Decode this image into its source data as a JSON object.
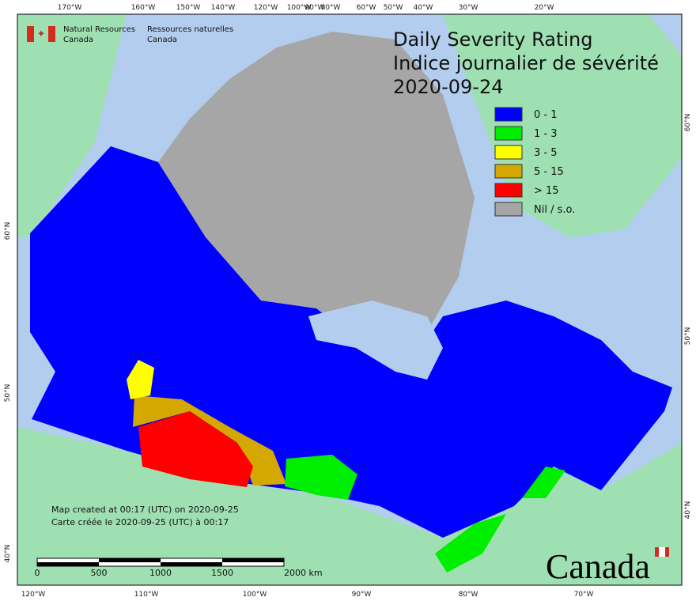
{
  "header": {
    "agency_en_1": "Natural Resources",
    "agency_en_2": "Canada",
    "agency_fr_1": "Ressources naturelles",
    "agency_fr_2": "Canada"
  },
  "title": {
    "line1": "Daily Severity Rating",
    "line2": "Indice journalier de sévérité",
    "date": "2020-09-24"
  },
  "legend": [
    {
      "label": "0 - 1",
      "color": "#0000ff"
    },
    {
      "label": "1 - 3",
      "color": "#00ee00"
    },
    {
      "label": "3 - 5",
      "color": "#ffff00"
    },
    {
      "label": "5 - 15",
      "color": "#d4a800"
    },
    {
      "label": "> 15",
      "color": "#ff0000"
    },
    {
      "label": "Nil / s.o.",
      "color": "#a6a6a6"
    }
  ],
  "top_longitudes": [
    "170°W",
    "160°W",
    "150°W",
    "140°W",
    "120°W",
    "100°W",
    "90°W",
    "80°W",
    "60°W",
    "50°W",
    "40°W",
    "30°W",
    "20°W"
  ],
  "bottom_longitudes": [
    "120°W",
    "110°W",
    "100°W",
    "90°W",
    "80°W",
    "70°W"
  ],
  "left_latitudes": [
    "60°N",
    "50°N",
    "40°N"
  ],
  "right_latitudes": [
    "60°N",
    "50°N",
    "40°N"
  ],
  "note": {
    "line1": "Map created at 00:17 (UTC) on 2020-09-25",
    "line2": "Carte créée le 2020-09-25 (UTC) à 00:17"
  },
  "scale_bar": [
    "0",
    "500",
    "1000",
    "1500",
    "2000 km"
  ],
  "wordmark": "Canada"
}
